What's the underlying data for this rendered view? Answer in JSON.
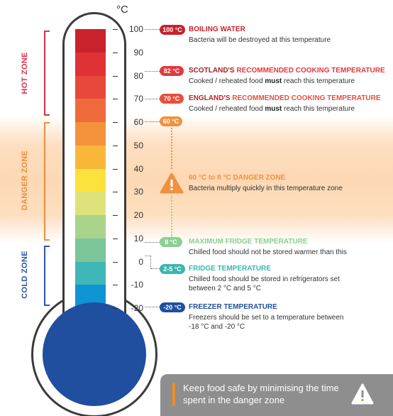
{
  "unit": "°C",
  "zones": [
    {
      "label": "HOT ZONE",
      "color": "#d8344a"
    },
    {
      "label": "DANGER ZONE",
      "color": "#ee8e3e"
    },
    {
      "label": "COLD ZONE",
      "color": "#2a57a8"
    }
  ],
  "scale_labels": [
    "100",
    "90",
    "80",
    "70",
    "60",
    "50",
    "40",
    "30",
    "20",
    "10",
    "0",
    "-10",
    "-20"
  ],
  "segment_colors": [
    "#c8222d",
    "#de3237",
    "#e8483c",
    "#ee6a3d",
    "#f3923b",
    "#f9b73a",
    "#fde13c",
    "#dfe27a",
    "#a9d38b",
    "#7cc49a",
    "#3fb6b7",
    "#0f94d4",
    "#1c5ba8"
  ],
  "annotations": {
    "boiling": {
      "badge": "100 °C",
      "title": "BOILING WATER",
      "desc": "Bacteria will be destroyed at this temperature",
      "color": "#c8222d"
    },
    "scotland": {
      "badge": "82 °C",
      "title_strong": "SCOTLAND'S",
      "title_rest": " RECOMMENDED COOKING TEMPERATURE",
      "desc_pre": "Cooked / reheated food ",
      "desc_bold": "must",
      "desc_post": " reach this temperature",
      "color": "#e0393e"
    },
    "england": {
      "badge": "70 °C",
      "title_strong": "ENGLAND'S",
      "title_rest": " RECOMMENDED COOKING TEMPERATURE",
      "desc_pre": "Cooked / reheated food ",
      "desc_bold": "must",
      "desc_post": " reach this temperature",
      "color": "#e94e3c"
    },
    "sixty": {
      "badge": "60 °C",
      "color": "#f29040"
    },
    "danger": {
      "title": "60 °C to 8 °C DANGER ZONE",
      "desc": "Bacteria multiply quickly in this temperature zone",
      "color": "#f29040"
    },
    "fridge_max": {
      "badge": "8 °C",
      "title": "MAXIMUM FRIDGE TEMPERATURE",
      "desc": "Chilled food should not be stored warmer than this",
      "color": "#8ccf92"
    },
    "fridge": {
      "badge": "2-5 °C",
      "title": "FRIDGE TEMPERATURE",
      "desc_line1": "Chilled food should be stored in refrigerators set",
      "desc_line2": "between 2 °C and 5 °C",
      "color": "#3ab7b0"
    },
    "freezer": {
      "badge": "-20 °C",
      "title": "FREEZER TEMPERATURE",
      "desc_line1": "Freezers should be set to a temperature between",
      "desc_line2": "-18 °C and -20 °C",
      "color": "#1e4fa0"
    }
  },
  "tip": {
    "text": "Keep food safe by minimising the time spent in the danger zone",
    "accent": "#f28a24"
  },
  "icons": [
    "warning-triangle-icon",
    "warning-diamond-icon"
  ]
}
